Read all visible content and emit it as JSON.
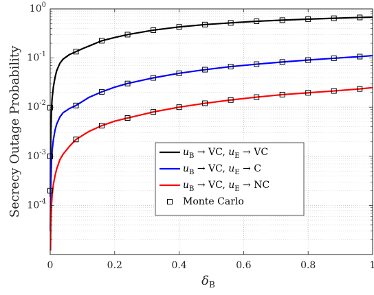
{
  "chart_data": {
    "type": "line",
    "title": "",
    "xlabel": {
      "main": "δ",
      "sub": "B"
    },
    "ylabel": "Secrecy Outage Probability",
    "xlim": [
      0,
      1
    ],
    "ylim": [
      1e-05,
      1
    ],
    "yscale": "log",
    "grid": true,
    "minor_grid": true,
    "legend_position": "lower-right",
    "x_ticks": [
      0,
      0.2,
      0.4,
      0.6,
      0.8,
      1
    ],
    "x_tick_labels": [
      "0",
      "0.2",
      "0.4",
      "0.6",
      "0.8",
      "1"
    ],
    "y_ticks": [
      0.0001,
      0.001,
      0.01,
      0.1,
      1
    ],
    "y_tick_labels": [
      {
        "base": "10",
        "exp": "-4"
      },
      {
        "base": "10",
        "exp": "-3"
      },
      {
        "base": "10",
        "exp": "-2"
      },
      {
        "base": "10",
        "exp": "-1"
      },
      {
        "base": "10",
        "exp": "0"
      }
    ],
    "series": [
      {
        "name": {
          "u": "u",
          "ub": "B",
          "rel1": "VC",
          "ue": "E",
          "rel2": "VC"
        },
        "color": "#000000",
        "line": {
          "x": [
            0.0005,
            0.001,
            0.002,
            0.004,
            0.006,
            0.01,
            0.015,
            0.02,
            0.03,
            0.04,
            0.06,
            0.08,
            0.1,
            0.12,
            0.16,
            0.2,
            0.24,
            0.32,
            0.4,
            0.48,
            0.56,
            0.64,
            0.72,
            0.8,
            0.88,
            0.96,
            1.0
          ],
          "y": [
            0.00015,
            0.0009,
            0.003,
            0.009,
            0.015,
            0.026,
            0.04,
            0.055,
            0.078,
            0.095,
            0.118,
            0.135,
            0.155,
            0.175,
            0.225,
            0.262,
            0.3,
            0.37,
            0.43,
            0.48,
            0.52,
            0.56,
            0.59,
            0.62,
            0.645,
            0.67,
            0.68
          ]
        },
        "markers": {
          "x": [
            0,
            0,
            0,
            0.08,
            0.16,
            0.24,
            0.32,
            0.4,
            0.48,
            0.56,
            0.64,
            0.72,
            0.8,
            0.88,
            0.96
          ],
          "y": [
            0.0002,
            0.001,
            0.0098,
            0.135,
            0.225,
            0.3,
            0.37,
            0.43,
            0.48,
            0.52,
            0.56,
            0.59,
            0.62,
            0.645,
            0.67
          ]
        }
      },
      {
        "name": {
          "u": "u",
          "ub": "B",
          "rel1": "VC",
          "ue": "E",
          "rel2": "C"
        },
        "color": "#0000ff",
        "line": {
          "x": [
            0.0005,
            0.001,
            0.002,
            0.004,
            0.006,
            0.01,
            0.015,
            0.02,
            0.03,
            0.04,
            0.06,
            0.08,
            0.12,
            0.16,
            0.2,
            0.24,
            0.32,
            0.4,
            0.48,
            0.56,
            0.64,
            0.72,
            0.8,
            0.88,
            0.96,
            1.0
          ],
          "y": [
            3e-05,
            0.0001,
            0.0003,
            0.0008,
            0.0013,
            0.0022,
            0.0034,
            0.0045,
            0.0063,
            0.0077,
            0.0094,
            0.0108,
            0.0158,
            0.0205,
            0.0255,
            0.0303,
            0.0395,
            0.049,
            0.058,
            0.067,
            0.075,
            0.083,
            0.091,
            0.099,
            0.107,
            0.112
          ]
        },
        "markers": {
          "x": [
            0.08,
            0.16,
            0.24,
            0.32,
            0.4,
            0.48,
            0.56,
            0.64,
            0.72,
            0.8,
            0.88,
            0.96
          ],
          "y": [
            0.0108,
            0.0205,
            0.0303,
            0.0395,
            0.049,
            0.058,
            0.067,
            0.075,
            0.083,
            0.091,
            0.099,
            0.107
          ]
        }
      },
      {
        "name": {
          "u": "u",
          "ub": "B",
          "rel1": "VC",
          "ue": "E",
          "rel2": "NC"
        },
        "color": "#ff0000",
        "line": {
          "x": [
            0.001,
            0.002,
            0.004,
            0.006,
            0.01,
            0.015,
            0.02,
            0.03,
            0.04,
            0.06,
            0.08,
            0.12,
            0.16,
            0.2,
            0.24,
            0.32,
            0.4,
            0.48,
            0.56,
            0.64,
            0.72,
            0.8,
            0.88,
            0.96,
            1.0
          ],
          "y": [
            1.2e-05,
            4e-05,
            0.0001,
            0.00016,
            0.00027,
            0.0004,
            0.00055,
            0.00085,
            0.0011,
            0.0016,
            0.0022,
            0.0032,
            0.0042,
            0.0052,
            0.006,
            0.008,
            0.01,
            0.012,
            0.014,
            0.016,
            0.018,
            0.0196,
            0.0214,
            0.0235,
            0.025
          ]
        },
        "markers": {
          "x": [
            0.08,
            0.16,
            0.24,
            0.32,
            0.4,
            0.48,
            0.56,
            0.64,
            0.72,
            0.8,
            0.88,
            0.96
          ],
          "y": [
            0.0022,
            0.0042,
            0.006,
            0.008,
            0.01,
            0.012,
            0.014,
            0.016,
            0.018,
            0.0196,
            0.0214,
            0.0235
          ]
        }
      }
    ],
    "legend": {
      "items": [
        {
          "series": 0
        },
        {
          "series": 1
        },
        {
          "series": 2
        },
        {
          "marker": "square",
          "label": "Monte Carlo"
        }
      ]
    }
  }
}
